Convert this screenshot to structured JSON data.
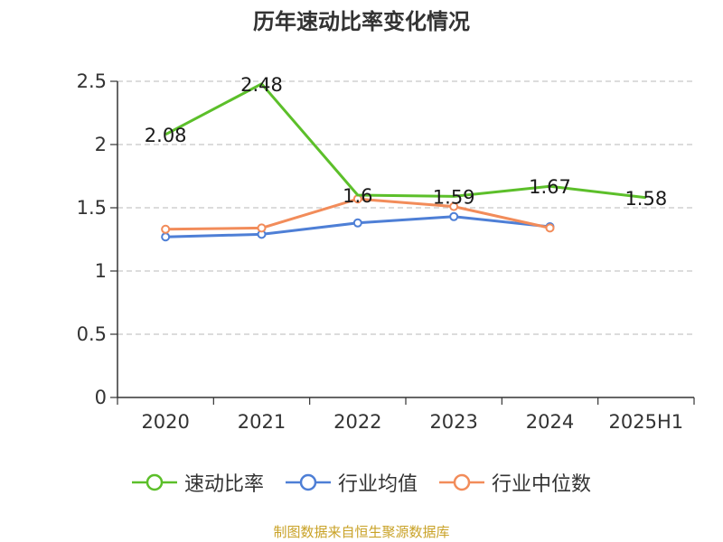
{
  "chart_data": {
    "type": "line",
    "title": "历年速动比率变化情况",
    "categories": [
      "2020",
      "2021",
      "2022",
      "2023",
      "2024",
      "2025H1"
    ],
    "ylim": [
      0,
      2.5
    ],
    "yticks": [
      0,
      0.5,
      1,
      1.5,
      2,
      2.5
    ],
    "ytick_labels": [
      "0",
      "0.5",
      "1",
      "1.5",
      "2",
      "2.5"
    ],
    "grid": true,
    "legend_position": "bottom",
    "series": [
      {
        "name": "速动比率",
        "color": "#5cbf2a",
        "values": [
          2.08,
          2.48,
          1.6,
          1.59,
          1.67,
          1.58
        ],
        "labels": [
          "2.08",
          "2.48",
          "1.6",
          "1.59",
          "1.67",
          "1.58"
        ],
        "show_labels": true
      },
      {
        "name": "行业均值",
        "color": "#4e7fd6",
        "values": [
          1.27,
          1.29,
          1.38,
          1.43,
          1.35,
          null
        ],
        "show_labels": false
      },
      {
        "name": "行业中位数",
        "color": "#f28c5a",
        "values": [
          1.33,
          1.34,
          1.57,
          1.51,
          1.34,
          null
        ],
        "show_labels": false
      }
    ]
  },
  "source": "制图数据来自恒生聚源数据库"
}
